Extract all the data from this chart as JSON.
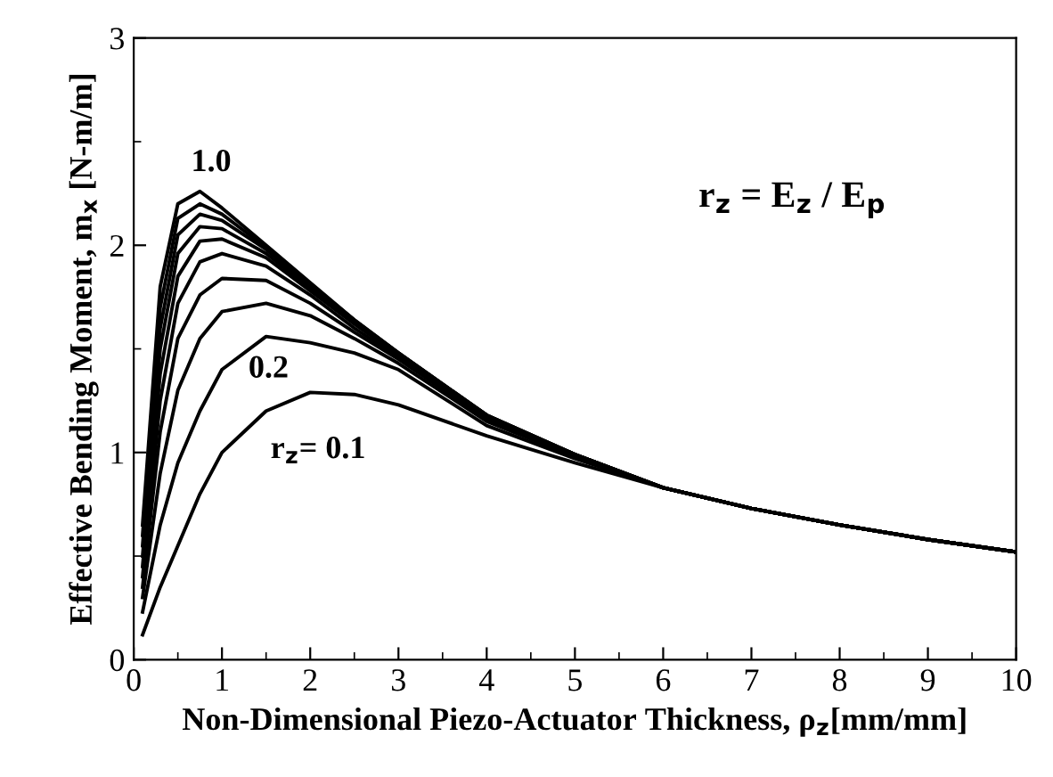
{
  "chart_data": {
    "type": "line",
    "xlabel": "Non-Dimensional Piezo-Actuator Thickness, ρ$_{z}$[mm/mm]",
    "ylabel": "Effective Bending Moment, m$_{x}$ [N-m/m]",
    "x": [
      0.1,
      0.3,
      0.5,
      0.75,
      1,
      1.5,
      2,
      2.5,
      3,
      4,
      5,
      6,
      7,
      8,
      9,
      10
    ],
    "series": [
      {
        "color": "#000000",
        "values": [
          0.12,
          0.35,
          0.55,
          0.8,
          1.0,
          1.2,
          1.29,
          1.28,
          1.23,
          1.08,
          0.95,
          0.83,
          0.73,
          0.65,
          0.58,
          0.52
        ]
      },
      {
        "color": "#000000",
        "values": [
          0.23,
          0.65,
          0.95,
          1.2,
          1.4,
          1.56,
          1.53,
          1.48,
          1.4,
          1.13,
          0.97,
          0.83,
          0.73,
          0.65,
          0.58,
          0.52
        ]
      },
      {
        "color": "#000000",
        "values": [
          0.3,
          0.9,
          1.3,
          1.55,
          1.68,
          1.72,
          1.66,
          1.55,
          1.43,
          1.15,
          0.98,
          0.83,
          0.73,
          0.65,
          0.58,
          0.52
        ]
      },
      {
        "color": "#000000",
        "values": [
          0.35,
          1.1,
          1.55,
          1.76,
          1.84,
          1.83,
          1.72,
          1.58,
          1.45,
          1.16,
          0.98,
          0.83,
          0.73,
          0.65,
          0.58,
          0.52
        ]
      },
      {
        "color": "#000000",
        "values": [
          0.4,
          1.25,
          1.72,
          1.92,
          1.96,
          1.9,
          1.76,
          1.6,
          1.46,
          1.17,
          0.99,
          0.83,
          0.73,
          0.65,
          0.58,
          0.52
        ]
      },
      {
        "color": "#000000",
        "values": [
          0.45,
          1.38,
          1.85,
          2.02,
          2.03,
          1.94,
          1.78,
          1.62,
          1.47,
          1.17,
          0.99,
          0.83,
          0.73,
          0.65,
          0.58,
          0.52
        ]
      },
      {
        "color": "#000000",
        "values": [
          0.5,
          1.5,
          1.96,
          2.09,
          2.08,
          1.96,
          1.79,
          1.63,
          1.47,
          1.18,
          0.99,
          0.83,
          0.73,
          0.65,
          0.58,
          0.52
        ]
      },
      {
        "color": "#000000",
        "values": [
          0.55,
          1.6,
          2.05,
          2.15,
          2.12,
          1.98,
          1.8,
          1.63,
          1.48,
          1.18,
          0.99,
          0.83,
          0.73,
          0.65,
          0.58,
          0.52
        ]
      },
      {
        "color": "#000000",
        "values": [
          0.6,
          1.7,
          2.13,
          2.2,
          2.15,
          1.99,
          1.81,
          1.64,
          1.48,
          1.18,
          0.99,
          0.83,
          0.73,
          0.65,
          0.58,
          0.52
        ]
      },
      {
        "color": "#000000",
        "values": [
          0.65,
          1.8,
          2.2,
          2.26,
          2.18,
          2.0,
          1.82,
          1.64,
          1.48,
          1.18,
          0.99,
          0.83,
          0.73,
          0.65,
          0.58,
          0.52
        ]
      }
    ],
    "annotations": [
      "1.0",
      "0.2",
      "r$_{z}$= 0.1",
      "r$_{z}$ = E$_{z}$ / E$_{p}$"
    ],
    "xlim": [
      0,
      10
    ],
    "ylim": [
      0,
      3
    ],
    "xticks": [
      0,
      1,
      2,
      3,
      4,
      5,
      6,
      7,
      8,
      9,
      10
    ],
    "yticks": [
      0,
      1,
      2,
      3
    ],
    "grid": false,
    "legend": false,
    "marker": "none",
    "line_style": "solid"
  }
}
